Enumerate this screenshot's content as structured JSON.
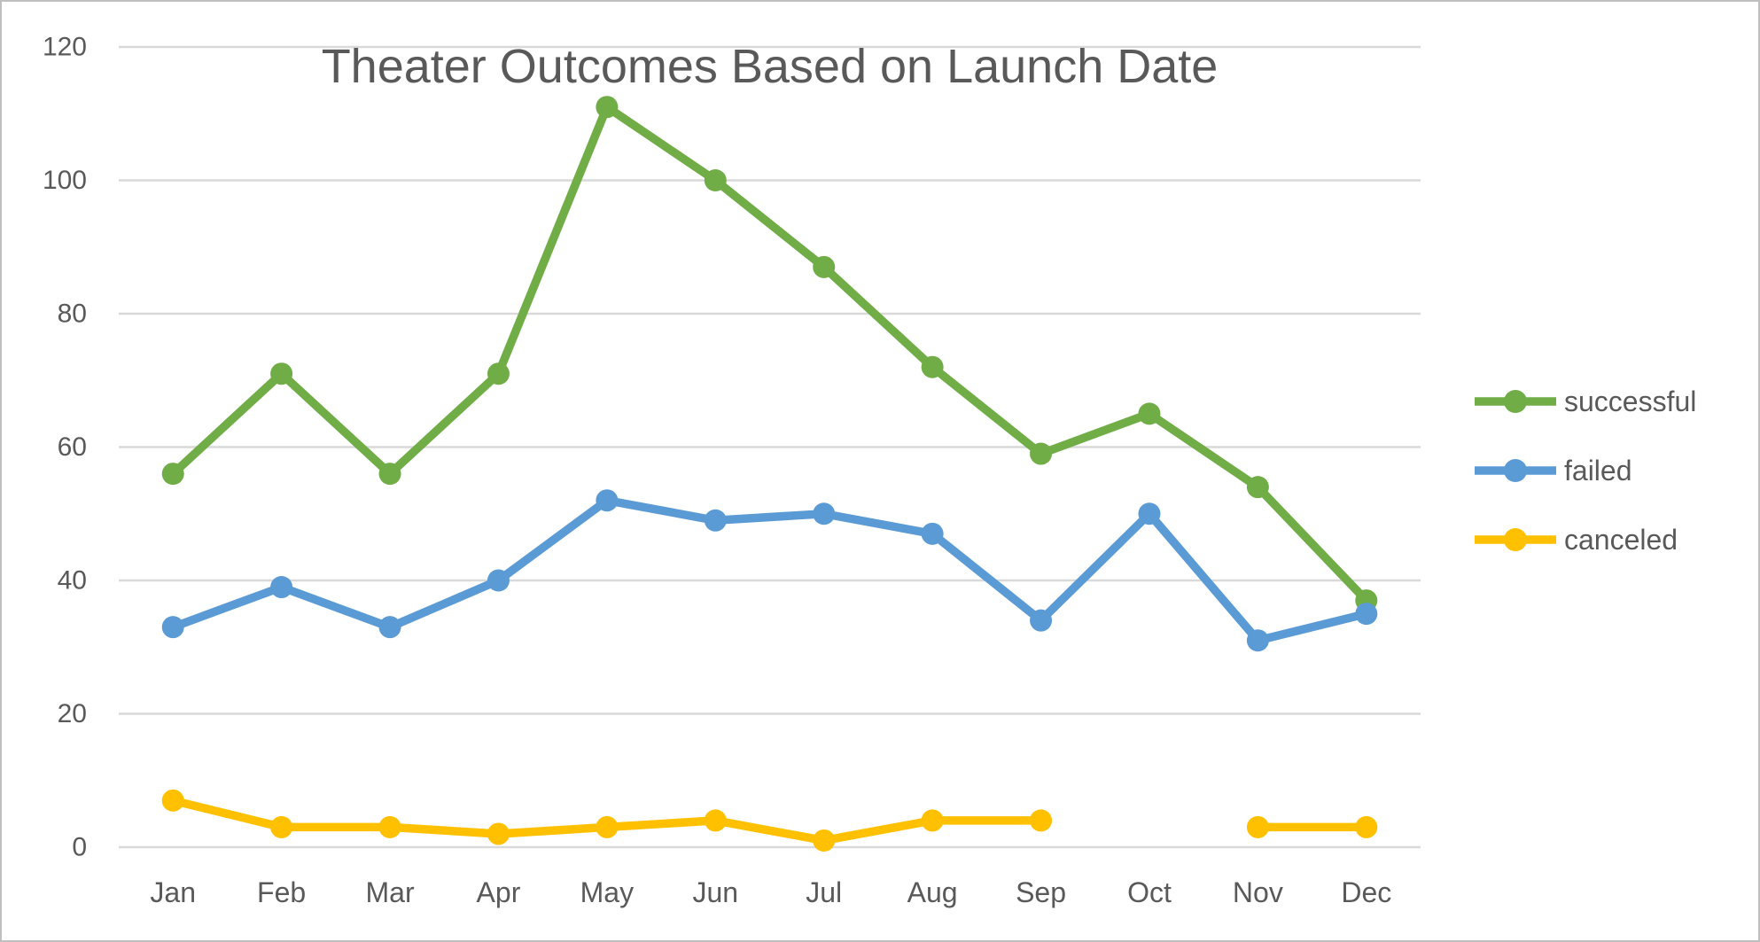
{
  "chart_data": {
    "type": "line",
    "title": "Theater Outcomes Based on Launch Date",
    "categories": [
      "Jan",
      "Feb",
      "Mar",
      "Apr",
      "May",
      "Jun",
      "Jul",
      "Aug",
      "Sep",
      "Oct",
      "Nov",
      "Dec"
    ],
    "series": [
      {
        "name": "successful",
        "color": "#70AD47",
        "values": [
          56,
          71,
          56,
          71,
          111,
          100,
          87,
          72,
          59,
          65,
          54,
          37
        ]
      },
      {
        "name": "failed",
        "color": "#5B9BD5",
        "values": [
          33,
          39,
          33,
          40,
          52,
          49,
          50,
          47,
          34,
          50,
          31,
          35
        ]
      },
      {
        "name": "canceled",
        "color": "#FFC000",
        "values": [
          7,
          3,
          3,
          2,
          3,
          4,
          1,
          4,
          4,
          null,
          3,
          3
        ]
      }
    ],
    "xlabel": "",
    "ylabel": "",
    "ylim": [
      0,
      120
    ],
    "yticks": [
      0,
      20,
      40,
      60,
      80,
      100,
      120
    ],
    "grid": true,
    "legend_position": "right"
  },
  "palette": {
    "gridline": "#D9D9D9",
    "tick_text": "#595959",
    "title_text": "#595959",
    "frame_border": "#BFBFBF",
    "background": "#FFFFFF"
  }
}
